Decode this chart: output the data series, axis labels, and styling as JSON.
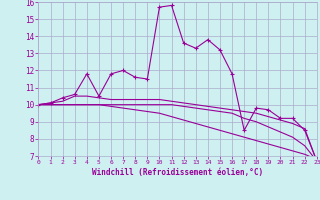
{
  "xlabel": "Windchill (Refroidissement éolien,°C)",
  "x": [
    0,
    1,
    2,
    3,
    4,
    5,
    6,
    7,
    8,
    9,
    10,
    11,
    12,
    13,
    14,
    15,
    16,
    17,
    18,
    19,
    20,
    21,
    22,
    23
  ],
  "line1": [
    10.0,
    10.1,
    10.4,
    10.6,
    11.8,
    10.5,
    11.8,
    12.0,
    11.6,
    11.5,
    15.7,
    15.8,
    13.6,
    13.3,
    13.8,
    13.2,
    11.8,
    8.5,
    9.8,
    9.7,
    9.2,
    9.2,
    8.5,
    6.7
  ],
  "line2": [
    10.0,
    10.1,
    10.2,
    10.5,
    10.5,
    10.4,
    10.3,
    10.3,
    10.3,
    10.3,
    10.3,
    10.2,
    10.1,
    10.0,
    9.9,
    9.8,
    9.7,
    9.6,
    9.5,
    9.3,
    9.1,
    8.9,
    8.6,
    6.7
  ],
  "line3": [
    10.0,
    10.0,
    10.0,
    10.0,
    10.0,
    10.0,
    10.0,
    10.0,
    10.0,
    10.0,
    10.0,
    10.0,
    9.9,
    9.8,
    9.7,
    9.6,
    9.5,
    9.2,
    9.0,
    8.7,
    8.4,
    8.1,
    7.6,
    6.7
  ],
  "line4": [
    10.0,
    10.0,
    10.0,
    10.0,
    10.0,
    10.0,
    9.9,
    9.8,
    9.7,
    9.6,
    9.5,
    9.3,
    9.1,
    8.9,
    8.7,
    8.5,
    8.3,
    8.1,
    7.9,
    7.7,
    7.5,
    7.3,
    7.1,
    6.8
  ],
  "line_color": "#990099",
  "bg_color": "#cff0f0",
  "grid_color": "#aaaacc",
  "ylim": [
    7,
    16
  ],
  "yticks": [
    7,
    8,
    9,
    10,
    11,
    12,
    13,
    14,
    15,
    16
  ],
  "xticks": [
    0,
    1,
    2,
    3,
    4,
    5,
    6,
    7,
    8,
    9,
    10,
    11,
    12,
    13,
    14,
    15,
    16,
    17,
    18,
    19,
    20,
    21,
    22,
    23
  ],
  "xlabel_color": "#990099",
  "tick_color": "#990099"
}
